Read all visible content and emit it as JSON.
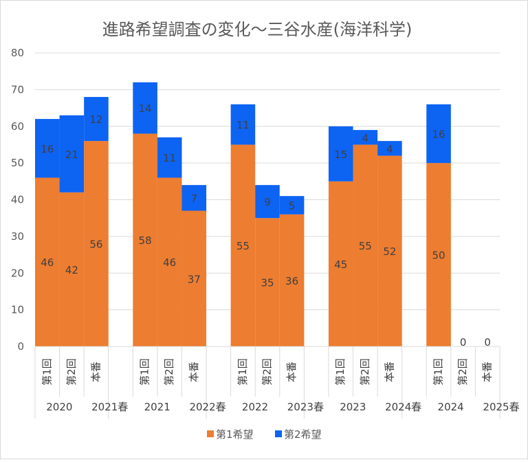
{
  "chart_data": {
    "type": "bar",
    "stacked": true,
    "title": "進路希望調査の変化～三谷水産(海洋科学)",
    "ylim": [
      0,
      80
    ],
    "yticks": [
      0,
      10,
      20,
      30,
      40,
      50,
      60,
      70,
      80
    ],
    "xlabel": "",
    "ylabel": "",
    "legend_position": "bottom",
    "groups": [
      {
        "name": "2020",
        "season": "2021春",
        "categories": [
          "第1回",
          "第2回",
          "本番"
        ],
        "first": [
          46,
          42,
          56
        ],
        "second": [
          16,
          21,
          12
        ]
      },
      {
        "name": "2021",
        "season": "2022春",
        "categories": [
          "第1回",
          "第2回",
          "本番"
        ],
        "first": [
          58,
          46,
          37
        ],
        "second": [
          14,
          11,
          7
        ]
      },
      {
        "name": "2022",
        "season": "2023春",
        "categories": [
          "第1回",
          "第2回",
          "本番"
        ],
        "first": [
          55,
          35,
          36
        ],
        "second": [
          11,
          9,
          5
        ]
      },
      {
        "name": "2023",
        "season": "2024春",
        "categories": [
          "第1回",
          "第2回",
          "本番"
        ],
        "first": [
          45,
          55,
          52
        ],
        "second": [
          15,
          4,
          4
        ]
      },
      {
        "name": "2024",
        "season": "2025春",
        "categories": [
          "第1回",
          "第2回",
          "本番"
        ],
        "first": [
          50,
          0,
          0
        ],
        "second": [
          16,
          null,
          null
        ]
      }
    ],
    "series": [
      {
        "name": "第1希望",
        "color": "#ED7D31"
      },
      {
        "name": "第2希望",
        "color": "#0D63F2"
      }
    ]
  }
}
